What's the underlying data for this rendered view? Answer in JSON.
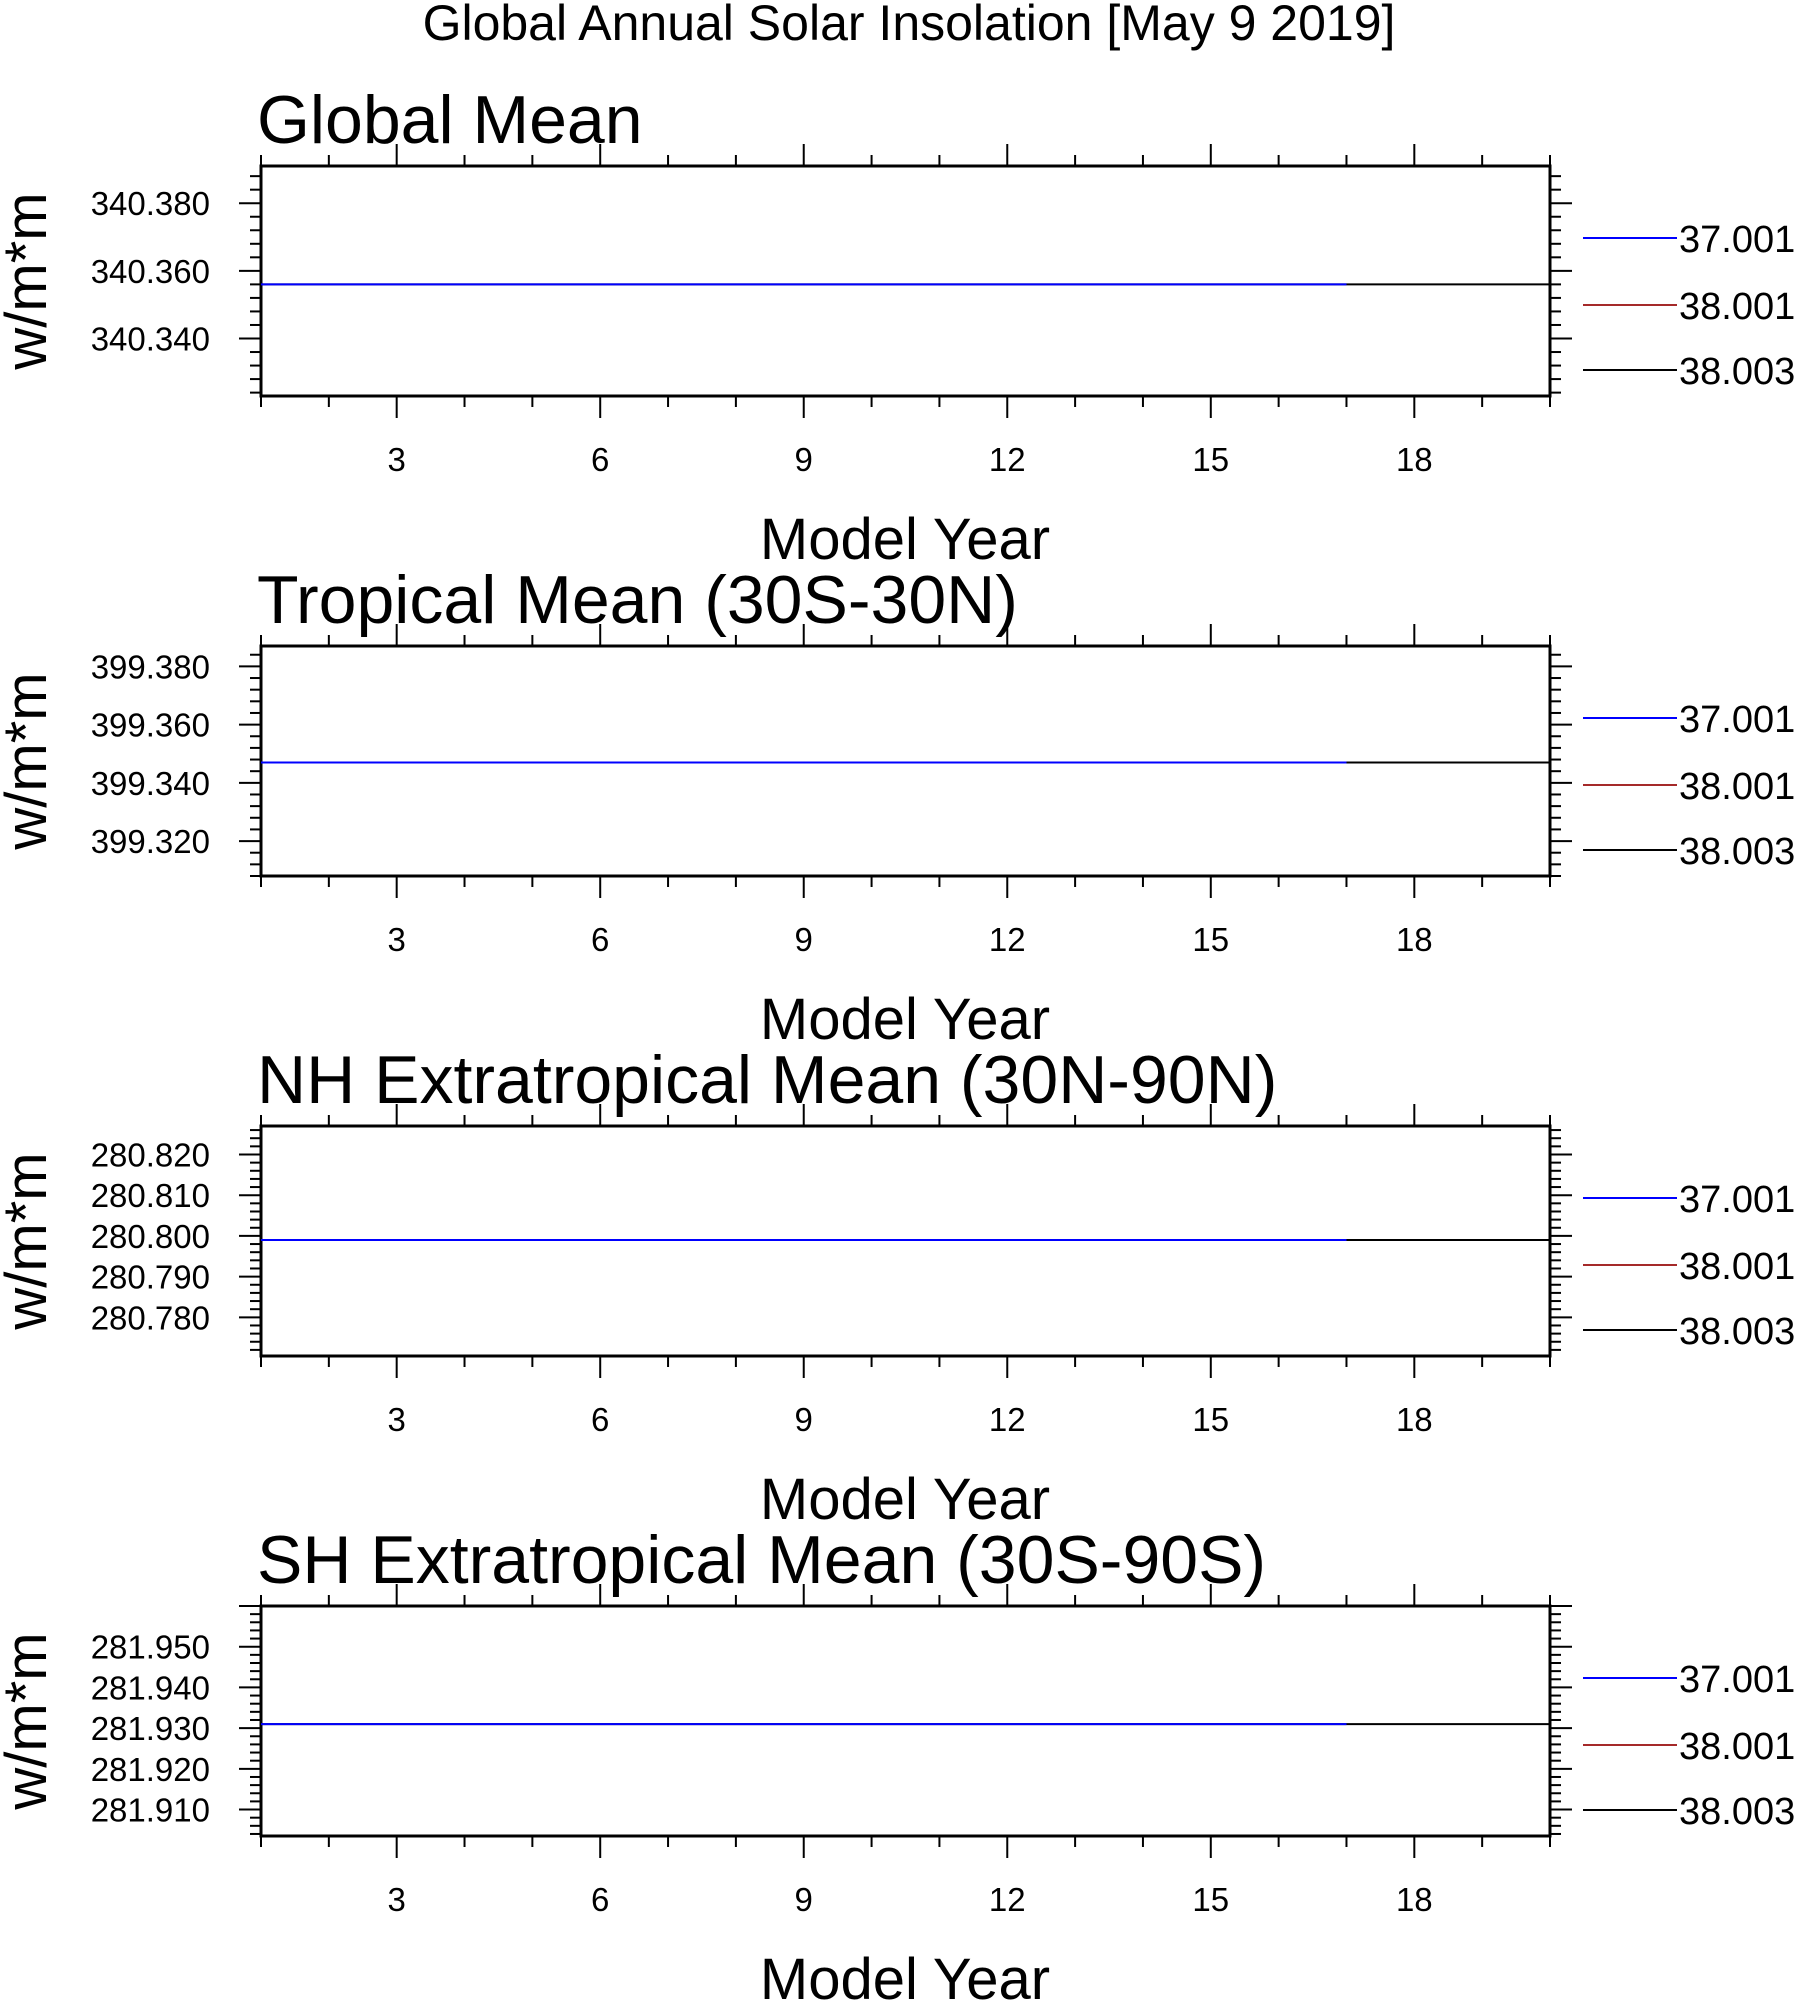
{
  "title": "Global Annual Solar Insolation [May  9 2019]",
  "colors": {
    "37.001": "#0000ff",
    "38.001": "#a52a2a",
    "38.003": "#000000"
  },
  "chart_data": [
    {
      "type": "line",
      "title": "Global Mean",
      "xlabel": "Model Year",
      "ylabel": "w/m*m",
      "xlim": [
        1,
        20
      ],
      "xticks": [
        3,
        6,
        9,
        12,
        15,
        18
      ],
      "ylim": [
        340.323,
        340.391
      ],
      "yticks": [
        340.34,
        340.36,
        340.38
      ],
      "ytick_labels": [
        "340.340",
        "340.360",
        "340.380"
      ],
      "ymajor": 0.02,
      "yminor": 0.004,
      "legend": "right",
      "series": [
        {
          "name": "37.001",
          "x": [
            1,
            17
          ],
          "values": [
            340.356,
            340.356
          ],
          "color": "#0000ff"
        },
        {
          "name": "38.001",
          "x": [],
          "values": [],
          "color": "#a52a2a"
        },
        {
          "name": "38.003",
          "x": [
            1,
            20
          ],
          "values": [
            340.356,
            340.356
          ],
          "color": "#000000"
        }
      ]
    },
    {
      "type": "line",
      "title": "Tropical Mean (30S-30N)",
      "xlabel": "Model Year",
      "ylabel": "w/m*m",
      "xlim": [
        1,
        20
      ],
      "xticks": [
        3,
        6,
        9,
        12,
        15,
        18
      ],
      "ylim": [
        399.308,
        399.387
      ],
      "yticks": [
        399.32,
        399.34,
        399.36,
        399.38
      ],
      "ytick_labels": [
        "399.320",
        "399.340",
        "399.360",
        "399.380"
      ],
      "ymajor": 0.02,
      "yminor": 0.004,
      "legend": "right",
      "series": [
        {
          "name": "37.001",
          "x": [
            1,
            17
          ],
          "values": [
            399.347,
            399.347
          ],
          "color": "#0000ff"
        },
        {
          "name": "38.001",
          "x": [],
          "values": [],
          "color": "#a52a2a"
        },
        {
          "name": "38.003",
          "x": [
            1,
            20
          ],
          "values": [
            399.347,
            399.347
          ],
          "color": "#000000"
        }
      ]
    },
    {
      "type": "line",
      "title": "NH Extratropical Mean (30N-90N)",
      "xlabel": "Model Year",
      "ylabel": "w/m*m",
      "xlim": [
        1,
        20
      ],
      "xticks": [
        3,
        6,
        9,
        12,
        15,
        18
      ],
      "ylim": [
        280.7705,
        280.827
      ],
      "yticks": [
        280.78,
        280.79,
        280.8,
        280.81,
        280.82
      ],
      "ytick_labels": [
        "280.780",
        "280.790",
        "280.800",
        "280.810",
        "280.820"
      ],
      "ymajor": 0.01,
      "yminor": 0.002,
      "legend": "right",
      "series": [
        {
          "name": "37.001",
          "x": [
            1,
            17
          ],
          "values": [
            280.799,
            280.799
          ],
          "color": "#0000ff"
        },
        {
          "name": "38.001",
          "x": [],
          "values": [],
          "color": "#a52a2a"
        },
        {
          "name": "38.003",
          "x": [
            1,
            20
          ],
          "values": [
            280.799,
            280.799
          ],
          "color": "#000000"
        }
      ]
    },
    {
      "type": "line",
      "title": "SH Extratropical Mean (30S-90S)",
      "xlabel": "Model Year",
      "ylabel": "w/m*m",
      "xlim": [
        1,
        20
      ],
      "xticks": [
        3,
        6,
        9,
        12,
        15,
        18
      ],
      "ylim": [
        281.9035,
        281.96
      ],
      "yticks": [
        281.91,
        281.92,
        281.93,
        281.94,
        281.95
      ],
      "ytick_labels": [
        "281.910",
        "281.920",
        "281.930",
        "281.940",
        "281.950"
      ],
      "ymajor": 0.01,
      "yminor": 0.002,
      "legend": "right",
      "series": [
        {
          "name": "37.001",
          "x": [
            1,
            17
          ],
          "values": [
            281.931,
            281.931
          ],
          "color": "#0000ff"
        },
        {
          "name": "38.001",
          "x": [],
          "values": [],
          "color": "#a52a2a"
        },
        {
          "name": "38.003",
          "x": [
            1,
            20
          ],
          "values": [
            281.931,
            281.931
          ],
          "color": "#000000"
        }
      ]
    }
  ]
}
